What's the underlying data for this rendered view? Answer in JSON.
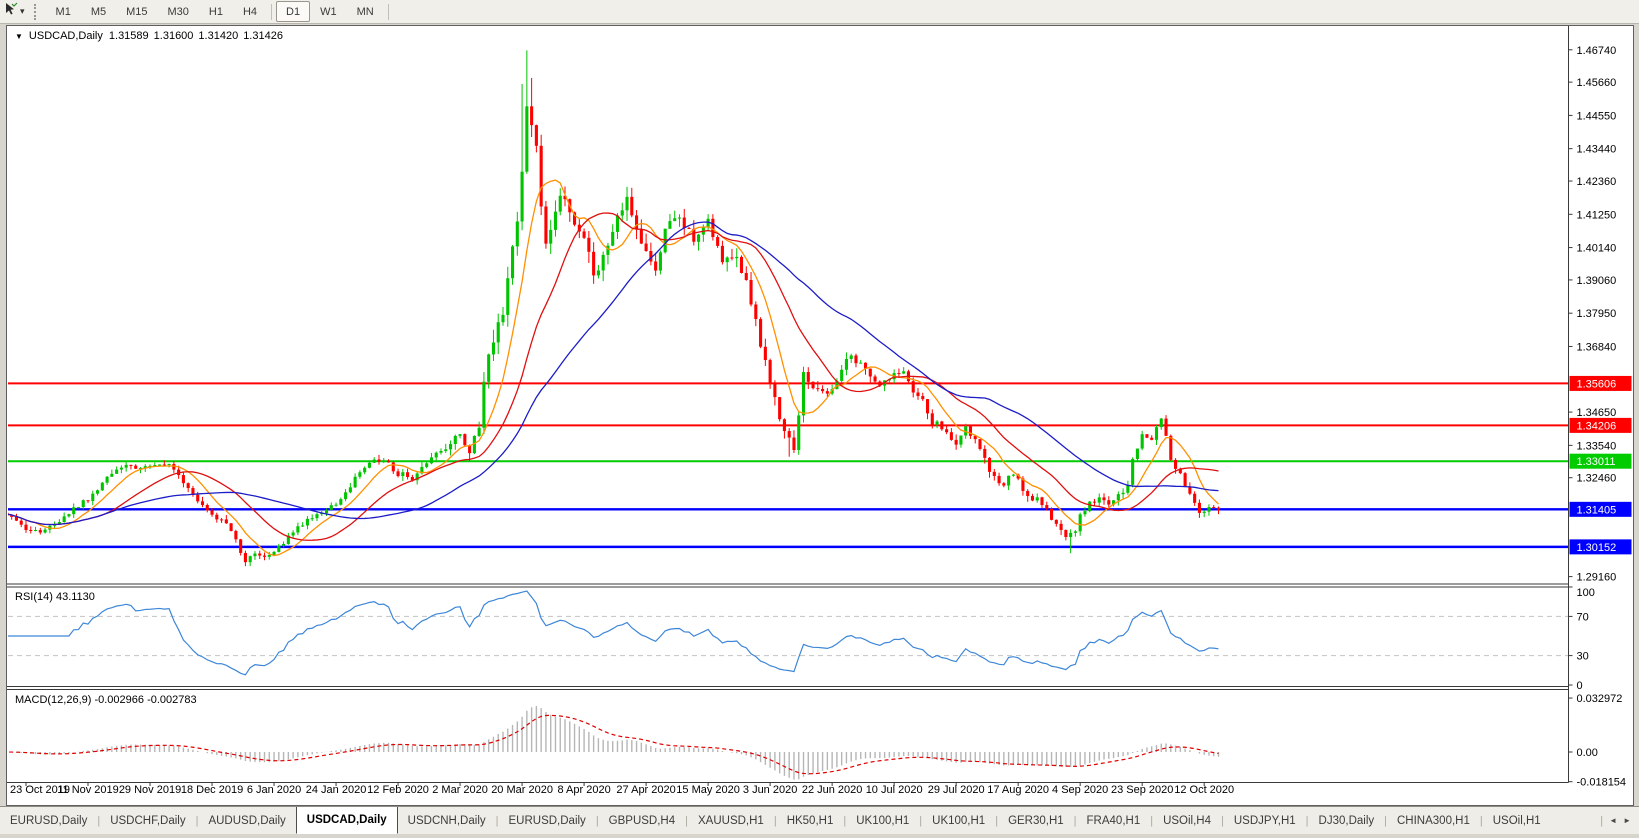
{
  "toolbar": {
    "cursor_tool_icon": "cursor-arrow",
    "dropdown_caret": "▾",
    "timeframes": [
      "M1",
      "M5",
      "M15",
      "M30",
      "H1",
      "H4",
      "D1",
      "W1",
      "MN"
    ],
    "active_timeframe": "D1"
  },
  "chart": {
    "collapse_icon": "▼",
    "title_symbol": "USDCAD,Daily",
    "quote_open": "1.31589",
    "quote_high": "1.31600",
    "quote_low": "1.31420",
    "quote_close": "1.31426",
    "rsi_label": "RSI(14) 43.1130",
    "macd_label": "MACD(12,26,9) -0.002966 -0.002783"
  },
  "chart_data": {
    "type": "candlestick",
    "symbol": "USDCAD",
    "timeframe": "Daily",
    "ylim": [
      1.2893,
      1.475
    ],
    "grid": false,
    "date_labels": [
      "23 Oct 2019",
      "11 Nov 2019",
      "29 Nov 2019",
      "18 Dec 2019",
      "6 Jan 2020",
      "24 Jan 2020",
      "12 Feb 2020",
      "2 Mar 2020",
      "20 Mar 2020",
      "8 Apr 2020",
      "27 Apr 2020",
      "15 May 2020",
      "3 Jun 2020",
      "22 Jun 2020",
      "10 Jul 2020",
      "29 Jul 2020",
      "17 Aug 2020",
      "4 Sep 2020",
      "23 Sep 2020",
      "12 Oct 2020"
    ],
    "days_per_gridline": 13,
    "day_range": [
      -5,
      250
    ],
    "price_ticks": [
      "1.46740",
      "1.45660",
      "1.44550",
      "1.43440",
      "1.42360",
      "1.41250",
      "1.40140",
      "1.39060",
      "1.37950",
      "1.36840",
      "1.34650",
      "1.33540",
      "1.32460",
      "1.29160"
    ],
    "horizontal_lines": [
      {
        "label": "1.35606",
        "price": 1.35606,
        "color": "#ff0000",
        "width": 2
      },
      {
        "label": "1.34206",
        "price": 1.34206,
        "color": "#ff0000",
        "width": 2
      },
      {
        "label": "1.33011",
        "price": 1.33011,
        "color": "#00cc00",
        "width": 2
      },
      {
        "label": "1.31405",
        "price": 1.31405,
        "color": "#0000ff",
        "width": 2.4
      },
      {
        "label": "1.30152",
        "price": 1.30152,
        "color": "#0000ff",
        "width": 2.4
      }
    ],
    "up_color": "#00c400",
    "down_color": "#ff0000",
    "moving_averages": [
      {
        "name": "fast",
        "period": 8,
        "color": "#ff9000"
      },
      {
        "name": "medium",
        "period": 20,
        "color": "#e01010"
      },
      {
        "name": "slow",
        "period": 40,
        "color": "#1c1cc8"
      }
    ],
    "close_keyframes": [
      [
        -5,
        1.3135
      ],
      [
        0,
        1.3078
      ],
      [
        3,
        1.3062
      ],
      [
        6,
        1.3095
      ],
      [
        10,
        1.314
      ],
      [
        13,
        1.3175
      ],
      [
        17,
        1.3242
      ],
      [
        21,
        1.3288
      ],
      [
        26,
        1.3278
      ],
      [
        29,
        1.3296
      ],
      [
        32,
        1.3258
      ],
      [
        36,
        1.317
      ],
      [
        39,
        1.3128
      ],
      [
        43,
        1.3075
      ],
      [
        46,
        1.2966
      ],
      [
        48,
        1.2985
      ],
      [
        52,
        1.2996
      ],
      [
        56,
        1.3062
      ],
      [
        60,
        1.3118
      ],
      [
        65,
        1.3158
      ],
      [
        69,
        1.3242
      ],
      [
        72,
        1.3295
      ],
      [
        75,
        1.3302
      ],
      [
        78,
        1.3258
      ],
      [
        81,
        1.3248
      ],
      [
        85,
        1.3312
      ],
      [
        88,
        1.3352
      ],
      [
        91,
        1.3392
      ],
      [
        93,
        1.3338
      ],
      [
        95,
        1.3425
      ],
      [
        97,
        1.366
      ],
      [
        99,
        1.3745
      ],
      [
        101,
        1.389
      ],
      [
        103,
        1.4105
      ],
      [
        104,
        1.429
      ],
      [
        105,
        1.448
      ],
      [
        106,
        1.4445
      ],
      [
        107,
        1.433
      ],
      [
        108,
        1.416
      ],
      [
        109,
        1.4015
      ],
      [
        111,
        1.4155
      ],
      [
        113,
        1.4185
      ],
      [
        115,
        1.4105
      ],
      [
        117,
        1.4035
      ],
      [
        119,
        1.392
      ],
      [
        121,
        1.3995
      ],
      [
        124,
        1.411
      ],
      [
        126,
        1.4175
      ],
      [
        128,
        1.4075
      ],
      [
        130,
        1.4015
      ],
      [
        132,
        1.3945
      ],
      [
        134,
        1.4065
      ],
      [
        137,
        1.4125
      ],
      [
        140,
        1.404
      ],
      [
        143,
        1.4105
      ],
      [
        146,
        1.3965
      ],
      [
        148,
        1.3995
      ],
      [
        151,
        1.3905
      ],
      [
        153,
        1.3775
      ],
      [
        155,
        1.3625
      ],
      [
        156,
        1.3565
      ],
      [
        158,
        1.3432
      ],
      [
        160,
        1.3385
      ],
      [
        161,
        1.3352
      ],
      [
        163,
        1.3588
      ],
      [
        165,
        1.3545
      ],
      [
        167,
        1.3528
      ],
      [
        169,
        1.3552
      ],
      [
        171,
        1.3605
      ],
      [
        173,
        1.3655
      ],
      [
        175,
        1.3618
      ],
      [
        177,
        1.3588
      ],
      [
        179,
        1.3542
      ],
      [
        182,
        1.3592
      ],
      [
        184,
        1.3608
      ],
      [
        186,
        1.3532
      ],
      [
        188,
        1.3505
      ],
      [
        190,
        1.3432
      ],
      [
        193,
        1.3408
      ],
      [
        195,
        1.3352
      ],
      [
        197,
        1.3412
      ],
      [
        199,
        1.3378
      ],
      [
        201,
        1.3302
      ],
      [
        203,
        1.3252
      ],
      [
        205,
        1.3222
      ],
      [
        207,
        1.3262
      ],
      [
        208,
        1.3232
      ],
      [
        210,
        1.3185
      ],
      [
        212,
        1.3172
      ],
      [
        214,
        1.3132
      ],
      [
        216,
        1.3085
      ],
      [
        218,
        1.3048
      ],
      [
        220,
        1.3062
      ],
      [
        221,
        1.3128
      ],
      [
        223,
        1.3162
      ],
      [
        225,
        1.3182
      ],
      [
        227,
        1.3158
      ],
      [
        229,
        1.3198
      ],
      [
        231,
        1.3212
      ],
      [
        232,
        1.3308
      ],
      [
        234,
        1.3382
      ],
      [
        236,
        1.3372
      ],
      [
        238,
        1.3442
      ],
      [
        240,
        1.3312
      ],
      [
        242,
        1.3252
      ],
      [
        244,
        1.3185
      ],
      [
        246,
        1.3128
      ],
      [
        247,
        1.3142
      ],
      [
        249,
        1.3152
      ],
      [
        250,
        1.3143
      ]
    ],
    "volatility_keyframes": [
      [
        -5,
        0.0018
      ],
      [
        30,
        0.002
      ],
      [
        44,
        0.0022
      ],
      [
        60,
        0.0018
      ],
      [
        88,
        0.0025
      ],
      [
        95,
        0.005
      ],
      [
        100,
        0.0065
      ],
      [
        112,
        0.006
      ],
      [
        125,
        0.0048
      ],
      [
        145,
        0.0042
      ],
      [
        158,
        0.004
      ],
      [
        170,
        0.003
      ],
      [
        185,
        0.0026
      ],
      [
        205,
        0.0026
      ],
      [
        225,
        0.0024
      ],
      [
        250,
        0.0022
      ]
    ],
    "wick_overrides": [
      {
        "day": 104,
        "high": 1.456
      },
      {
        "day": 105,
        "high": 1.4672
      },
      {
        "day": 106,
        "high": 1.458
      },
      {
        "day": 46,
        "low": 1.2951
      },
      {
        "day": 219,
        "low": 1.2994
      },
      {
        "day": 160,
        "low": 1.3316
      }
    ],
    "rsi": {
      "period": 14,
      "color": "#3d86d8",
      "levels": [
        70,
        30
      ],
      "axis_labels": [
        "100",
        "70",
        "30",
        "0"
      ],
      "axis_values": [
        100,
        70,
        30,
        0
      ],
      "last_value": 43.113
    },
    "macd": {
      "fast": 12,
      "slow": 26,
      "signal": 9,
      "histogram_color": "#b6b6b6",
      "signal_color": "#e00000",
      "axis_labels": [
        "0.032972",
        "0.00",
        "-0.018154"
      ],
      "axis_values": [
        0.032972,
        0,
        -0.018154
      ],
      "ylim": [
        -0.01834,
        0.0379
      ]
    }
  },
  "tabbar": {
    "tabs": [
      {
        "label": "EURUSD,Daily",
        "active": false
      },
      {
        "label": "USDCHF,Daily",
        "active": false
      },
      {
        "label": "AUDUSD,Daily",
        "active": false
      },
      {
        "label": "USDCAD,Daily",
        "active": true
      },
      {
        "label": "USDCNH,Daily",
        "active": false
      },
      {
        "label": "EURUSD,Daily",
        "active": false
      },
      {
        "label": "GBPUSD,H4",
        "active": false
      },
      {
        "label": "XAUUSD,H1",
        "active": false
      },
      {
        "label": "HK50,H1",
        "active": false
      },
      {
        "label": "UK100,H1",
        "active": false
      },
      {
        "label": "UK100,H1",
        "active": false
      },
      {
        "label": "GER30,H1",
        "active": false
      },
      {
        "label": "FRA40,H1",
        "active": false
      },
      {
        "label": "USOil,H4",
        "active": false
      },
      {
        "label": "USDJPY,H1",
        "active": false
      },
      {
        "label": "DJ30,Daily",
        "active": false
      },
      {
        "label": "CHINA300,H1",
        "active": false
      },
      {
        "label": "USOil,H1",
        "active": false
      }
    ],
    "scroll_left_icon": "◄",
    "scroll_right_icon": "►"
  }
}
